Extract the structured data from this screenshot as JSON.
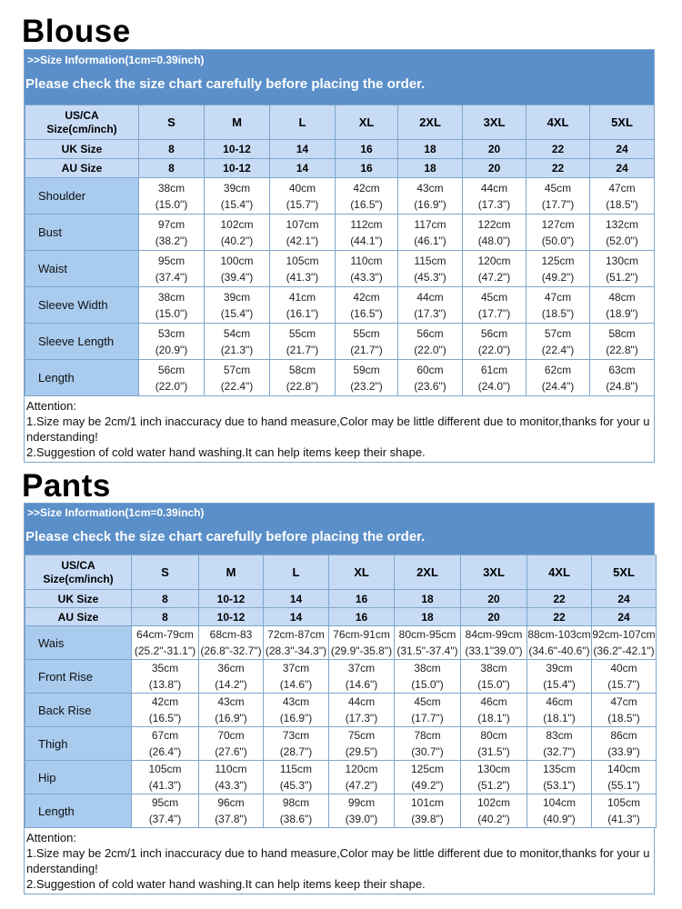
{
  "blouse": {
    "title": "Blouse",
    "info": ">>Size Information(1cm=0.39inch)",
    "check": "Please check the size chart carefully before placing the order.",
    "header_label": [
      "US/CA",
      "Size(cm/inch)"
    ],
    "sizes": [
      "S",
      "M",
      "L",
      "XL",
      "2XL",
      "3XL",
      "4XL",
      "5XL"
    ],
    "uk_label": "UK Size",
    "uk": [
      "8",
      "10-12",
      "14",
      "16",
      "18",
      "20",
      "22",
      "24"
    ],
    "au_label": "AU Size",
    "au": [
      "8",
      "10-12",
      "14",
      "16",
      "18",
      "20",
      "22",
      "24"
    ],
    "rows": [
      {
        "label": "Shoulder",
        "cm": [
          "38cm",
          "39cm",
          "40cm",
          "42cm",
          "43cm",
          "44cm",
          "45cm",
          "47cm"
        ],
        "inch": [
          "(15.0\")",
          "(15.4\")",
          "(15.7\")",
          "(16.5\")",
          "(16.9\")",
          "(17.3\")",
          "(17.7\")",
          "(18.5\")"
        ]
      },
      {
        "label": "Bust",
        "cm": [
          "97cm",
          "102cm",
          "107cm",
          "112cm",
          "117cm",
          "122cm",
          "127cm",
          "132cm"
        ],
        "inch": [
          "(38.2\")",
          "(40.2\")",
          "(42.1\")",
          "(44.1\")",
          "(46.1\")",
          "(48.0\")",
          "(50.0\")",
          "(52.0\")"
        ]
      },
      {
        "label": "Waist",
        "cm": [
          "95cm",
          "100cm",
          "105cm",
          "110cm",
          "115cm",
          "120cm",
          "125cm",
          "130cm"
        ],
        "inch": [
          "(37.4\")",
          "(39.4\")",
          "(41.3\")",
          "(43.3\")",
          "(45.3\")",
          "(47.2\")",
          "(49.2\")",
          "(51.2\")"
        ]
      },
      {
        "label": "Sleeve Width",
        "cm": [
          "38cm",
          "39cm",
          "41cm",
          "42cm",
          "44cm",
          "45cm",
          "47cm",
          "48cm"
        ],
        "inch": [
          "(15.0\")",
          "(15.4\")",
          "(16.1\")",
          "(16.5\")",
          "(17.3\")",
          "(17.7\")",
          "(18.5\")",
          "(18.9\")"
        ]
      },
      {
        "label": "Sleeve Length",
        "cm": [
          "53cm",
          "54cm",
          "55cm",
          "55cm",
          "56cm",
          "56cm",
          "57cm",
          "58cm"
        ],
        "inch": [
          "(20.9\")",
          "(21.3\")",
          "(21.7\")",
          "(21.7\")",
          "(22.0\")",
          "(22.0\")",
          "(22.4\")",
          "(22.8\")"
        ]
      },
      {
        "label": "Length",
        "cm": [
          "56cm",
          "57cm",
          "58cm",
          "59cm",
          "60cm",
          "61cm",
          "62cm",
          "63cm"
        ],
        "inch": [
          "(22.0\")",
          "(22.4\")",
          "(22.8\")",
          "(23.2\")",
          "(23.6\")",
          "(24.0\")",
          "(24.4\")",
          "(24.8\")"
        ]
      }
    ],
    "attention": [
      "Attention:",
      "1.Size may be 2cm/1 inch inaccuracy due to hand measure,Color may be little different due to monitor,thanks for your understanding!",
      "2.Suggestion of cold water hand washing.It can help items keep their shape."
    ]
  },
  "pants": {
    "title": "Pants",
    "info": ">>Size Information(1cm=0.39inch)",
    "check": "Please check the size chart carefully before placing the order.",
    "header_label": [
      "US/CA",
      "Size(cm/inch)"
    ],
    "sizes": [
      "S",
      "M",
      "L",
      "XL",
      "2XL",
      "3XL",
      "4XL",
      "5XL"
    ],
    "uk_label": "UK Size",
    "uk": [
      "8",
      "10-12",
      "14",
      "16",
      "18",
      "20",
      "22",
      "24"
    ],
    "au_label": "AU Size",
    "au": [
      "8",
      "10-12",
      "14",
      "16",
      "18",
      "20",
      "22",
      "24"
    ],
    "rows": [
      {
        "label": "Wais",
        "cm": [
          "64cm-79cm",
          "68cm-83",
          "72cm-87cm",
          "76cm-91cm",
          "80cm-95cm",
          "84cm-99cm",
          "88cm-103cm",
          "92cm-107cm"
        ],
        "inch": [
          "(25.2\"-31.1\")",
          "(26.8\"-32.7\")",
          "(28.3\"-34.3\")",
          "(29.9\"-35.8\")",
          "(31.5\"-37.4\")",
          "(33.1\"39.0\")",
          "(34.6\"-40.6\")",
          "(36.2\"-42.1\")"
        ]
      },
      {
        "label": "Front Rise",
        "cm": [
          "35cm",
          "36cm",
          "37cm",
          "37cm",
          "38cm",
          "38cm",
          "39cm",
          "40cm"
        ],
        "inch": [
          "(13.8\")",
          "(14.2\")",
          "(14.6\")",
          "(14.6\")",
          "(15.0\")",
          "(15.0\")",
          "(15.4\")",
          "(15.7\")"
        ]
      },
      {
        "label": "Back Rise",
        "cm": [
          "42cm",
          "43cm",
          "43cm",
          "44cm",
          "45cm",
          "46cm",
          "46cm",
          "47cm"
        ],
        "inch": [
          "(16.5\")",
          "(16.9\")",
          "(16.9\")",
          "(17.3\")",
          "(17.7\")",
          "(18.1\")",
          "(18.1\")",
          "(18.5\")"
        ]
      },
      {
        "label": "Thigh",
        "cm": [
          "67cm",
          "70cm",
          "73cm",
          "75cm",
          "78cm",
          "80cm",
          "83cm",
          "86cm"
        ],
        "inch": [
          "(26.4\")",
          "(27.6\")",
          "(28.7\")",
          "(29.5\")",
          "(30.7\")",
          "(31.5\")",
          "(32.7\")",
          "(33.9\")"
        ]
      },
      {
        "label": "Hip",
        "cm": [
          "105cm",
          "110cm",
          "115cm",
          "120cm",
          "125cm",
          "130cm",
          "135cm",
          "140cm"
        ],
        "inch": [
          "(41.3\")",
          "(43.3\")",
          "(45.3\")",
          "(47.2\")",
          "(49.2\")",
          "(51.2\")",
          "(53.1\")",
          "(55.1\")"
        ]
      },
      {
        "label": "Length",
        "cm": [
          "95cm",
          "96cm",
          "98cm",
          "99cm",
          "101cm",
          "102cm",
          "104cm",
          "105cm"
        ],
        "inch": [
          "(37.4\")",
          "(37.8\")",
          "(38.6\")",
          "(39.0\")",
          "(39.8\")",
          "(40.2\")",
          "(40.9\")",
          "(41.3\")"
        ]
      }
    ],
    "attention": [
      "Attention:",
      "1.Size may be 2cm/1 inch inaccuracy due to hand measure,Color may be little different due to monitor,thanks for your understanding!",
      "2.Suggestion of cold water hand washing.It can help items keep their shape."
    ]
  }
}
